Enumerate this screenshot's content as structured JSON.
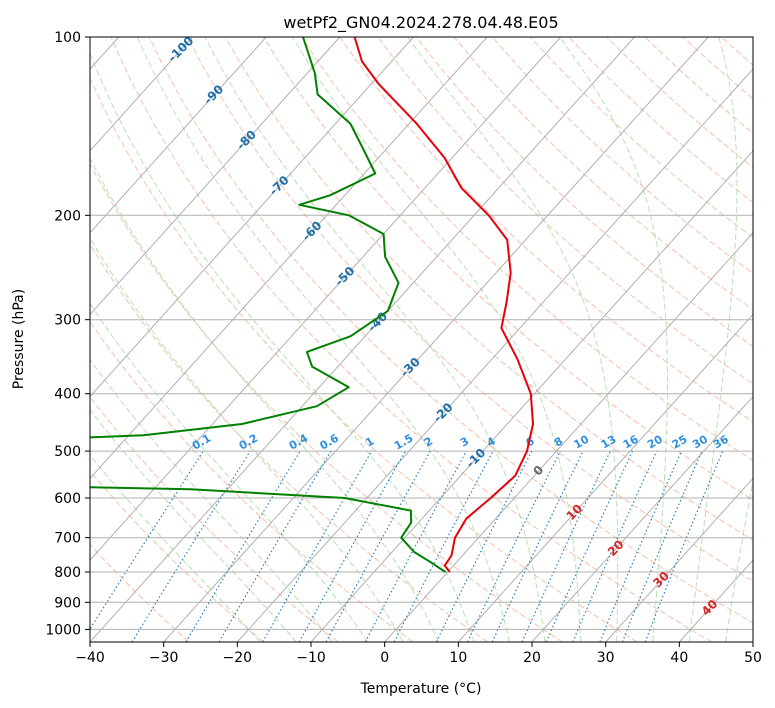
{
  "chart_data": {
    "type": "skew-t",
    "title": "wetPf2_GN04.2024.278.04.48.E05",
    "xlabel": "Temperature (°C)",
    "ylabel": "Pressure (hPa)",
    "xlim": [
      -40,
      50
    ],
    "ylim_hpa": [
      1050,
      100
    ],
    "x_ticks": [
      "−40",
      "−30",
      "−20",
      "−10",
      "0",
      "10",
      "20",
      "30",
      "40",
      "50"
    ],
    "x_tick_values": [
      -40,
      -30,
      -20,
      -10,
      0,
      10,
      20,
      30,
      40,
      50
    ],
    "y_ticks": [
      "100",
      "200",
      "300",
      "400",
      "500",
      "600",
      "700",
      "800",
      "900",
      "1000"
    ],
    "y_tick_values": [
      100,
      200,
      300,
      400,
      500,
      600,
      700,
      800,
      900,
      1000
    ],
    "grid": true,
    "colors": {
      "temperature": "#e8000b",
      "dewpoint": "#008000",
      "isotherm": "#b0b0b0",
      "dry_adiabat": "#f4a582",
      "moist_adiabat": "#a6d8a0",
      "mixing_ratio": "#1f77b4",
      "isotherm_label": "#1f6fa8",
      "mixing_label": "#2f8fe0",
      "warm_label": "#d62728"
    },
    "isotherm_labels": [
      {
        "t": -100,
        "text": "-100"
      },
      {
        "t": -90,
        "text": "-90"
      },
      {
        "t": -80,
        "text": "-80"
      },
      {
        "t": -70,
        "text": "-70"
      },
      {
        "t": -60,
        "text": "-60"
      },
      {
        "t": -50,
        "text": "-50"
      },
      {
        "t": -40,
        "text": "-40"
      },
      {
        "t": -30,
        "text": "-30"
      },
      {
        "t": -20,
        "text": "-20"
      },
      {
        "t": -10,
        "text": "-10"
      },
      {
        "t": 0,
        "text": "0"
      },
      {
        "t": 10,
        "text": "10"
      },
      {
        "t": 20,
        "text": "20"
      },
      {
        "t": 30,
        "text": "30"
      },
      {
        "t": 40,
        "text": "40"
      }
    ],
    "mixing_ratio_labels": [
      "0.1",
      "0.2",
      "0.4",
      "0.6",
      "1",
      "1.5",
      "2",
      "3",
      "4",
      "6",
      "8",
      "10",
      "13",
      "16",
      "20",
      "25",
      "30",
      "36"
    ],
    "mixing_ratio_values": [
      0.1,
      0.2,
      0.4,
      0.6,
      1,
      1.5,
      2,
      3,
      4,
      6,
      8,
      10,
      13,
      16,
      20,
      25,
      30,
      36
    ],
    "series": [
      {
        "name": "temperature",
        "points": [
          {
            "p": 800,
            "t": 0.3
          },
          {
            "p": 780,
            "t": -1.2
          },
          {
            "p": 750,
            "t": -1.5
          },
          {
            "p": 700,
            "t": -3.2
          },
          {
            "p": 650,
            "t": -4.0
          },
          {
            "p": 600,
            "t": -3.2
          },
          {
            "p": 550,
            "t": -2.6
          },
          {
            "p": 500,
            "t": -4.0
          },
          {
            "p": 450,
            "t": -6.5
          },
          {
            "p": 400,
            "t": -10.5
          },
          {
            "p": 350,
            "t": -16.5
          },
          {
            "p": 310,
            "t": -22.5
          },
          {
            "p": 280,
            "t": -25.0
          },
          {
            "p": 250,
            "t": -28.0
          },
          {
            "p": 220,
            "t": -32.5
          },
          {
            "p": 200,
            "t": -38.0
          },
          {
            "p": 180,
            "t": -45.0
          },
          {
            "p": 160,
            "t": -51.0
          },
          {
            "p": 140,
            "t": -59.0
          },
          {
            "p": 120,
            "t": -69.0
          },
          {
            "p": 110,
            "t": -74.0
          },
          {
            "p": 100,
            "t": -78.0
          }
        ]
      },
      {
        "name": "dewpoint",
        "points": [
          {
            "p": 800,
            "t": -0.3
          },
          {
            "p": 770,
            "t": -3.5
          },
          {
            "p": 740,
            "t": -7.0
          },
          {
            "p": 700,
            "t": -10.5
          },
          {
            "p": 660,
            "t": -11.0
          },
          {
            "p": 630,
            "t": -12.5
          },
          {
            "p": 600,
            "t": -23.0
          },
          {
            "p": 580,
            "t": -45.0
          },
          {
            "p": 570,
            "t": -75.0
          },
          {
            "p": 480,
            "t": -75.0
          },
          {
            "p": 470,
            "t": -58.0
          },
          {
            "p": 450,
            "t": -46.0
          },
          {
            "p": 420,
            "t": -38.0
          },
          {
            "p": 390,
            "t": -36.0
          },
          {
            "p": 360,
            "t": -43.5
          },
          {
            "p": 340,
            "t": -46.0
          },
          {
            "p": 320,
            "t": -42.0
          },
          {
            "p": 290,
            "t": -40.0
          },
          {
            "p": 260,
            "t": -42.0
          },
          {
            "p": 235,
            "t": -47.0
          },
          {
            "p": 215,
            "t": -50.0
          },
          {
            "p": 200,
            "t": -57.0
          },
          {
            "p": 192,
            "t": -65.0
          },
          {
            "p": 185,
            "t": -62.0
          },
          {
            "p": 170,
            "t": -58.5
          },
          {
            "p": 155,
            "t": -63.0
          },
          {
            "p": 140,
            "t": -68.0
          },
          {
            "p": 125,
            "t": -76.0
          },
          {
            "p": 115,
            "t": -79.0
          },
          {
            "p": 100,
            "t": -85.0
          }
        ]
      }
    ]
  }
}
